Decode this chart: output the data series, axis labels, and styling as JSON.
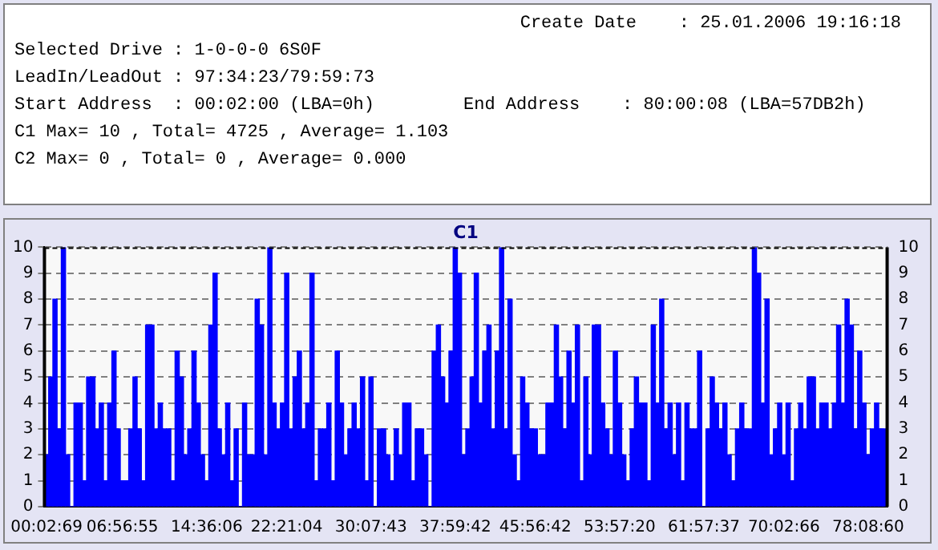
{
  "chart_data": {
    "type": "bar",
    "title": "C1",
    "annotations": [
      "Create Date    : 25.01.2006 19:16:18",
      "Selected Drive : 1-0-0-0 6S0F",
      "LeadIn/LeadOut : 97:34:23/79:59:73",
      "Start Address  : 00:02:00 (LBA=0h)",
      "End Address    : 80:00:08 (LBA=57DB2h)",
      "C1 Max= 10 , Total= 4725 , Average= 1.103",
      "C2 Max= 0 , Total= 0 , Average= 0.000"
    ],
    "categories": [
      "00:02:69",
      null,
      null,
      null,
      null,
      null,
      null,
      null,
      null,
      null,
      null,
      null,
      null,
      null,
      null,
      null,
      null,
      null,
      "06:56:55",
      null,
      null,
      null,
      null,
      null,
      null,
      null,
      null,
      null,
      null,
      null,
      null,
      null,
      null,
      null,
      null,
      null,
      null,
      null,
      "14:36:06",
      null,
      null,
      null,
      null,
      null,
      null,
      null,
      null,
      null,
      null,
      null,
      null,
      null,
      null,
      null,
      null,
      null,
      null,
      "22:21:04",
      null,
      null,
      null,
      null,
      null,
      null,
      null,
      null,
      null,
      null,
      null,
      null,
      null,
      null,
      null,
      null,
      null,
      null,
      null,
      "30:07:43",
      null,
      null,
      null,
      null,
      null,
      null,
      null,
      null,
      null,
      null,
      null,
      null,
      null,
      null,
      null,
      null,
      null,
      null,
      null,
      "37:59:42",
      null,
      null,
      null,
      null,
      null,
      null,
      null,
      null,
      null,
      null,
      null,
      null,
      null,
      null,
      null,
      null,
      null,
      null,
      "45:56:42",
      null,
      null,
      null,
      null,
      null,
      null,
      null,
      null,
      null,
      null,
      null,
      null,
      null,
      null,
      null,
      null,
      null,
      null,
      null,
      "53:57:20",
      null,
      null,
      null,
      null,
      null,
      null,
      null,
      null,
      null,
      null,
      null,
      null,
      null,
      null,
      null,
      null,
      null,
      null,
      null,
      "61:57:37",
      null,
      null,
      null,
      null,
      null,
      null,
      null,
      null,
      null,
      null,
      null,
      null,
      null,
      null,
      null,
      null,
      null,
      null,
      "70:02:66",
      null,
      null,
      null,
      null,
      null,
      null,
      null,
      null,
      null,
      null,
      null,
      null,
      null,
      null,
      null,
      null,
      null,
      null,
      null,
      "78:08:60",
      null,
      null,
      null,
      null
    ],
    "values": [
      2,
      5,
      8,
      3,
      10,
      2,
      0,
      4,
      4,
      1,
      5,
      5,
      3,
      4,
      1,
      4,
      6,
      3,
      1,
      1,
      3,
      5,
      3,
      1,
      7,
      7,
      3,
      4,
      3,
      3,
      1,
      6,
      5,
      2,
      3,
      6,
      4,
      2,
      1,
      7,
      9,
      3,
      2,
      4,
      1,
      3,
      0,
      4,
      2,
      2,
      8,
      7,
      2,
      10,
      4,
      3,
      4,
      9,
      3,
      5,
      6,
      3,
      4,
      9,
      1,
      3,
      3,
      4,
      1,
      6,
      4,
      2,
      3,
      4,
      3,
      5,
      1,
      5,
      0,
      3,
      3,
      2,
      1,
      3,
      2,
      4,
      4,
      1,
      3,
      3,
      2,
      0,
      6,
      7,
      5,
      4,
      6,
      10,
      9,
      2,
      3,
      5,
      9,
      4,
      6,
      7,
      3,
      6,
      10,
      3,
      8,
      2,
      1,
      5,
      4,
      3,
      3,
      2,
      2,
      4,
      4,
      7,
      5,
      3,
      6,
      4,
      7,
      1,
      5,
      2,
      7,
      7,
      4,
      3,
      2,
      6,
      4,
      2,
      1,
      3,
      5,
      4,
      4,
      1,
      7,
      4,
      8,
      3,
      4,
      2,
      4,
      1,
      4,
      3,
      3,
      6,
      0,
      3,
      5,
      4,
      3,
      4,
      2,
      1,
      3,
      4,
      3,
      3,
      10,
      9,
      4,
      8,
      2,
      3,
      4,
      2,
      4,
      1,
      3,
      4,
      3,
      5,
      5,
      3,
      4,
      4,
      3,
      4,
      7,
      4,
      8,
      7,
      3,
      6,
      4,
      2,
      3,
      4,
      3,
      3
    ],
    "color": "#0000ff",
    "ylim": [
      0,
      10
    ],
    "yticks": [
      0,
      1,
      2,
      3,
      4,
      5,
      6,
      7,
      8,
      9,
      10
    ],
    "y2lim": [
      0,
      10
    ],
    "y2ticks": [
      0,
      1,
      2,
      3,
      4,
      5,
      6,
      7,
      8,
      9,
      10
    ],
    "grid": "y",
    "legend": false
  }
}
